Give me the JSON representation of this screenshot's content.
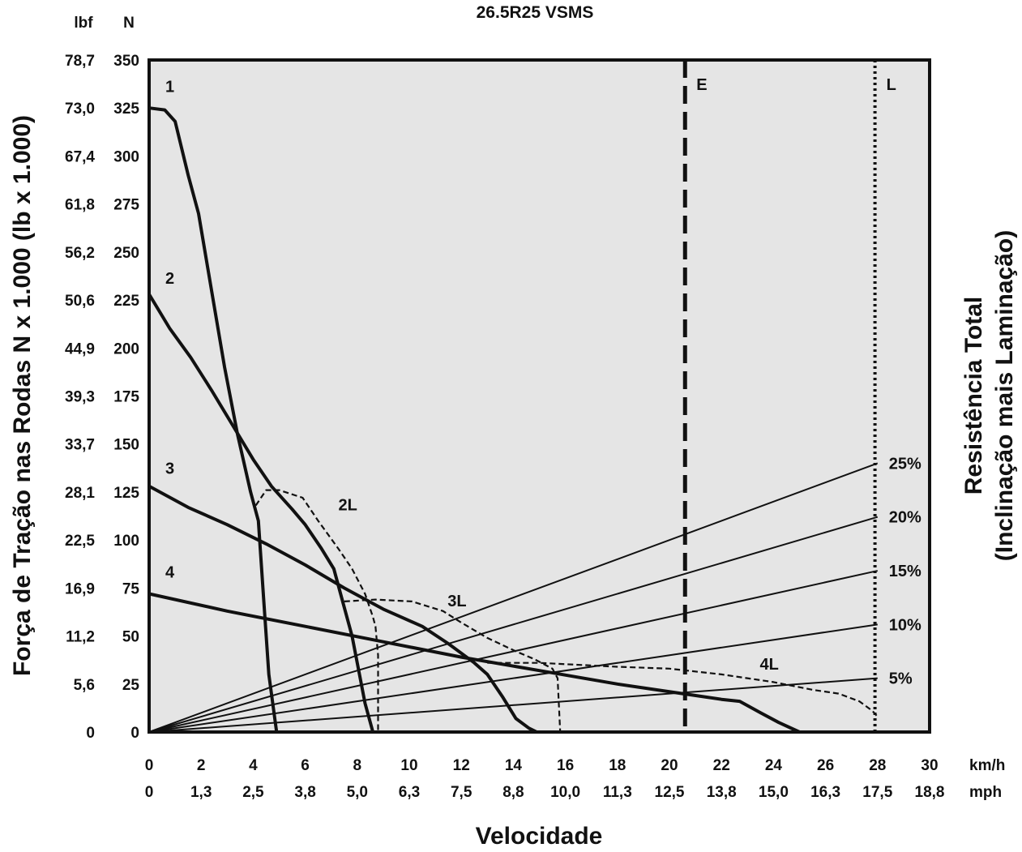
{
  "chart_data": {
    "type": "line",
    "title": "26.5R25 VSMS",
    "xlabel": "Velocidade",
    "ylabel": "Força de Tração nas Rodas N x 1.000 (lb x 1.000)",
    "right_label_line1": "Resistência Total",
    "right_label_line2": "(Inclinação mais Laminação)",
    "x_unit_kmh": "km/h",
    "x_unit_mph": "mph",
    "y_unit_lbf": "lbf",
    "y_unit_n": "N",
    "xlim": [
      0,
      30
    ],
    "ylim": [
      0,
      350
    ],
    "x_ticks_kmh": [
      "0",
      "2",
      "4",
      "6",
      "8",
      "10",
      "12",
      "14",
      "16",
      "18",
      "20",
      "22",
      "24",
      "26",
      "28",
      "30"
    ],
    "x_ticks_mph": [
      "0",
      "1,3",
      "2,5",
      "3,8",
      "5,0",
      "6,3",
      "7,5",
      "8,8",
      "10,0",
      "11,3",
      "12,5",
      "13,8",
      "15,0",
      "16,3",
      "17,5",
      "18,8"
    ],
    "y_ticks_n": [
      "0",
      "25",
      "50",
      "75",
      "100",
      "125",
      "150",
      "175",
      "200",
      "225",
      "250",
      "275",
      "300",
      "325",
      "350"
    ],
    "y_ticks_lbf": [
      "0",
      "5,6",
      "11,2",
      "16,9",
      "22,5",
      "28,1",
      "33,7",
      "39,3",
      "44,9",
      "50,6",
      "56,2",
      "61,8",
      "67,4",
      "73,0",
      "78,7"
    ],
    "grid": false,
    "series": [
      {
        "name": "1",
        "style": "solid",
        "label_pos": [
          0.5,
          330
        ],
        "x": [
          0,
          0.6,
          1.0,
          1.5,
          1.9,
          2.4,
          2.9,
          3.4,
          3.9,
          4.2,
          4.4,
          4.6,
          4.9
        ],
        "y": [
          325,
          324,
          318,
          290,
          270,
          230,
          190,
          155,
          125,
          110,
          70,
          30,
          0
        ]
      },
      {
        "name": "2",
        "style": "solid",
        "label_pos": [
          0.5,
          230
        ],
        "x": [
          0,
          0.8,
          1.6,
          2.4,
          3.2,
          4.0,
          4.7,
          5.5,
          6.0,
          6.6,
          7.1,
          7.4,
          7.8,
          8.3,
          8.6
        ],
        "y": [
          228,
          210,
          195,
          178,
          160,
          142,
          128,
          116,
          108,
          96,
          85,
          70,
          50,
          15,
          0
        ]
      },
      {
        "name": "3",
        "style": "solid",
        "label_pos": [
          0.5,
          131
        ],
        "x": [
          0,
          1.5,
          3.0,
          4.5,
          6.0,
          7.5,
          9.0,
          10.5,
          11.5,
          12.5,
          13.0,
          13.6,
          14.1,
          14.6,
          14.9
        ],
        "y": [
          128,
          117,
          108,
          98,
          87,
          75,
          64,
          55,
          46,
          36,
          30,
          18,
          7,
          2,
          0
        ]
      },
      {
        "name": "4",
        "style": "solid",
        "label_pos": [
          0.5,
          77
        ],
        "x": [
          0,
          3,
          6,
          9,
          12,
          15,
          18,
          20.5,
          22,
          22.7,
          23.5,
          24.2,
          25.0
        ],
        "y": [
          72,
          63,
          55,
          47,
          39,
          32,
          25,
          20,
          17,
          16,
          10,
          5,
          0
        ]
      },
      {
        "name": "2L",
        "style": "dashed",
        "label_pos": [
          6.9,
          118
        ],
        "x": [
          4.1,
          4.5,
          5.0,
          5.9,
          6.5,
          7.3,
          7.8,
          8.3,
          8.6,
          8.7,
          8.8,
          8.8
        ],
        "y": [
          118,
          126,
          126,
          122,
          110,
          95,
          85,
          72,
          60,
          55,
          40,
          0
        ]
      },
      {
        "name": "3L",
        "style": "dashed",
        "label_pos": [
          11.1,
          68
        ],
        "x": [
          7.5,
          8.7,
          10.1,
          11.3,
          12.0,
          13.0,
          14.1,
          14.8,
          15.5,
          15.7,
          15.8
        ],
        "y": [
          68,
          69,
          68,
          63,
          57,
          49,
          42,
          38,
          33,
          28,
          0
        ]
      },
      {
        "name": "4L",
        "style": "dashed",
        "label_pos": [
          23.1,
          35
        ],
        "x": [
          13.0,
          15.0,
          18.0,
          20.0,
          22.0,
          24.0,
          25.5,
          26.5,
          27.3,
          27.8,
          28.0
        ],
        "y": [
          36,
          36,
          34,
          33,
          30,
          26,
          22,
          20,
          16,
          11,
          8
        ]
      }
    ],
    "grade_lines": [
      {
        "label": "25%",
        "x": [
          0,
          28
        ],
        "y": [
          0,
          140
        ]
      },
      {
        "label": "20%",
        "x": [
          0,
          28
        ],
        "y": [
          0,
          112
        ]
      },
      {
        "label": "15%",
        "x": [
          0,
          28
        ],
        "y": [
          0,
          84
        ]
      },
      {
        "label": "10%",
        "x": [
          0,
          28
        ],
        "y": [
          0,
          56
        ]
      },
      {
        "label": "5%",
        "x": [
          0,
          28
        ],
        "y": [
          0,
          28
        ]
      }
    ],
    "vertical_markers": [
      {
        "label": "E",
        "x": 20.6,
        "style": "dashed"
      },
      {
        "label": "L",
        "x": 27.9,
        "style": "dotted"
      }
    ],
    "colors": {
      "background": "#e5e5e5",
      "ink": "#111111"
    }
  }
}
